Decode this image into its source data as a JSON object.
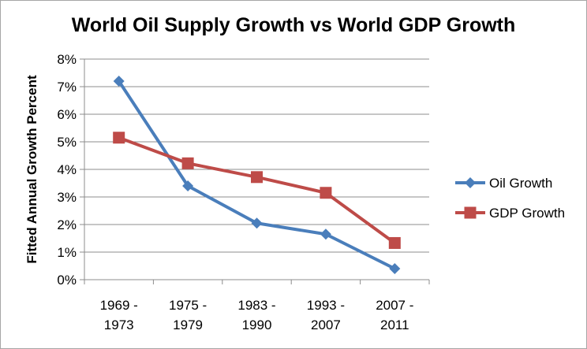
{
  "chart_data": {
    "type": "line",
    "title": "World Oil Supply Growth vs World GDP Growth",
    "xlabel": "",
    "ylabel": "Fitted Annual Growth Percent",
    "categories": [
      [
        "1969 -",
        "1973"
      ],
      [
        "1975 -",
        "1979"
      ],
      [
        "1983 -",
        "1990"
      ],
      [
        "1993 -",
        "2007"
      ],
      [
        "2007 -",
        "2011"
      ]
    ],
    "y_ticks": [
      "0%",
      "1%",
      "2%",
      "3%",
      "4%",
      "5%",
      "6%",
      "7%",
      "8%"
    ],
    "ylim": [
      0,
      8
    ],
    "grid": true,
    "legend_position": "right",
    "series": [
      {
        "name": "Oil Growth",
        "values": [
          7.2,
          3.4,
          2.05,
          1.65,
          0.4
        ],
        "color": "#4a7ebb",
        "marker": "diamond"
      },
      {
        "name": "GDP Growth",
        "values": [
          5.15,
          4.22,
          3.72,
          3.15,
          1.33
        ],
        "color": "#be4b48",
        "marker": "square"
      }
    ]
  }
}
